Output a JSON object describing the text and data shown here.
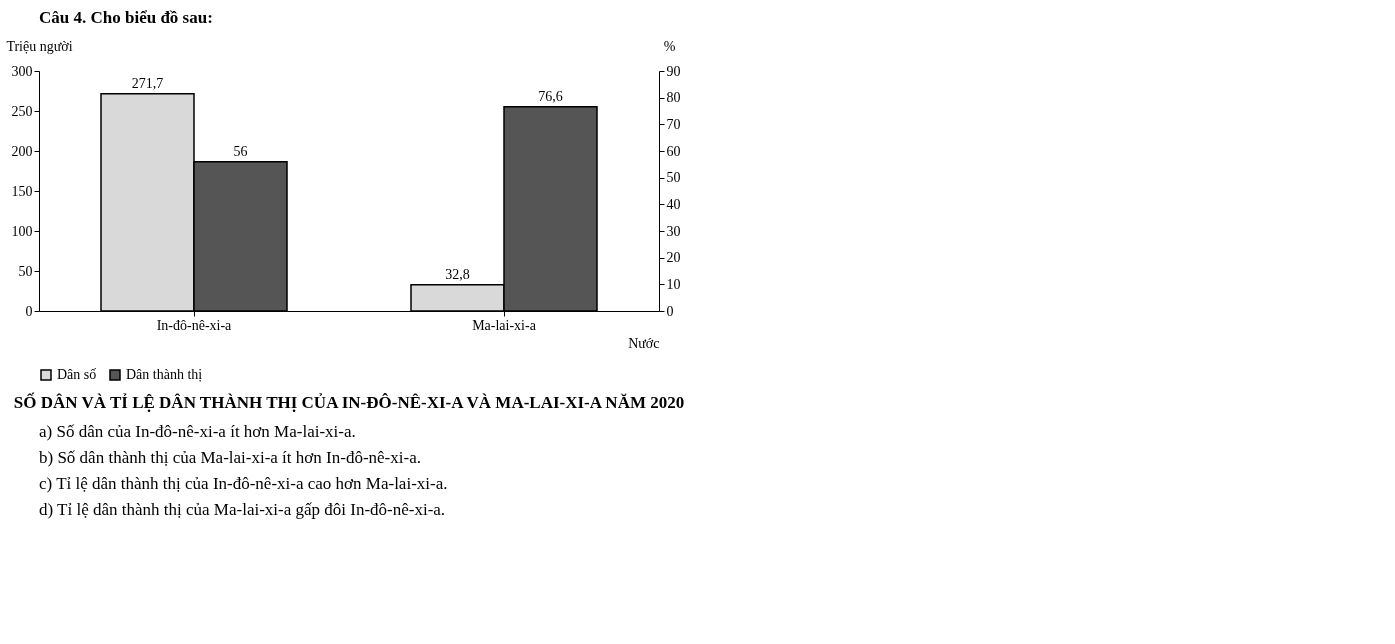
{
  "chart_data": {
    "type": "bar",
    "title": "SỐ DÂN VÀ TỈ LỆ DÂN THÀNH THỊ CỦA IN-ĐÔ-NÊ-XI-A VÀ MA-LAI-XI-A NĂM 2020",
    "xlabel": "Nước",
    "ylabel": "Triệu người",
    "y2label": "%",
    "categories": [
      "In-đô-nê-xi-a",
      "Ma-lai-xi-a"
    ],
    "series": [
      {
        "name": "Dân số",
        "color": "#d9d9d9",
        "values": [
          271.7,
          32.8
        ],
        "value_labels": [
          "271,7",
          "32,8"
        ]
      },
      {
        "name": "Dân thành thị",
        "color": "#555555",
        "values": [
          56,
          76.6
        ],
        "value_labels": [
          "56",
          "76,6"
        ],
        "axis": "y2"
      }
    ],
    "ylim": [
      0,
      300
    ],
    "yticks": [
      0,
      50,
      100,
      150,
      200,
      250,
      300
    ],
    "y2lim": [
      0,
      90
    ],
    "y2ticks": [
      0,
      10,
      20,
      30,
      40,
      50,
      60,
      70,
      80,
      90
    ],
    "grid": false,
    "legend": "bottom",
    "annotations": [
      "Câu 4. Cho biểu đồ sau:",
      "a) Số dân của In-đô-nê-xi-a ít hơn Ma-lai-xi-a.",
      "b) Số dân thành thị của Ma-lai-xi-a ít hơn In-đô-nê-xi-a.",
      "c) Tỉ lệ dân thành thị của In-đô-nê-xi-a cao hơn Ma-lai-xi-a.",
      "d) Tỉ lệ dân thành thị của Ma-lai-xi-a gấp đôi In-đô-nê-xi-a."
    ]
  }
}
